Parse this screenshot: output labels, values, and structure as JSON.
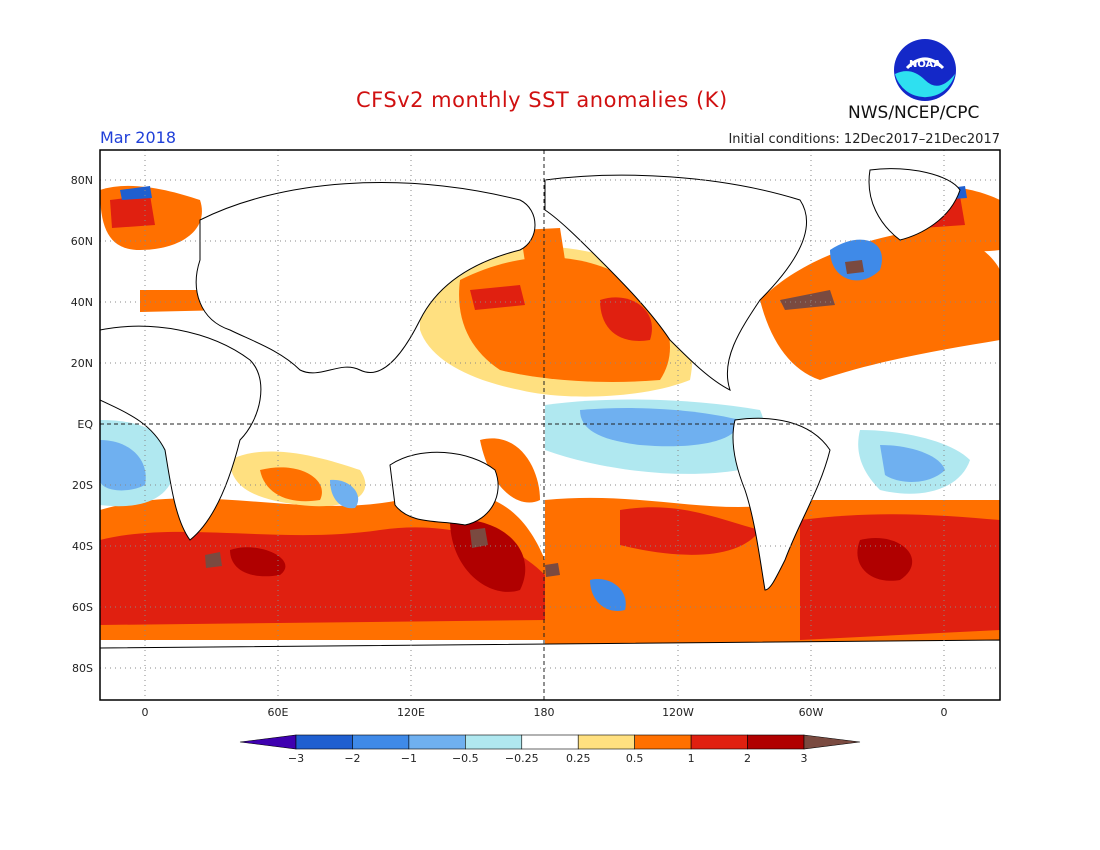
{
  "header": {
    "title": "CFSv2 monthly SST anomalies (K)",
    "month": "Mar 2018",
    "initial_conditions": "Initial conditions: 12Dec2017–21Dec2017",
    "organization": "NWS/NCEP/CPC",
    "logo_text": "NOAA"
  },
  "axes": {
    "lat_labels": [
      "80N",
      "60N",
      "40N",
      "20N",
      "EQ",
      "20S",
      "40S",
      "60S",
      "80S"
    ],
    "lon_labels": [
      "0",
      "60E",
      "120E",
      "180",
      "120W",
      "60W",
      "0"
    ]
  },
  "colorbar": {
    "tick_labels": [
      "−3",
      "−2",
      "−1",
      "−0.5",
      "−0.25",
      "0.25",
      "0.5",
      "1",
      "2",
      "3"
    ],
    "colors": [
      "#3f00b0",
      "#1f5fd0",
      "#3f8ae8",
      "#6fb0f0",
      "#b0e8f0",
      "#ffffff",
      "#ffe080",
      "#ff7000",
      "#e02010",
      "#b00000",
      "#7a4a40"
    ]
  }
}
